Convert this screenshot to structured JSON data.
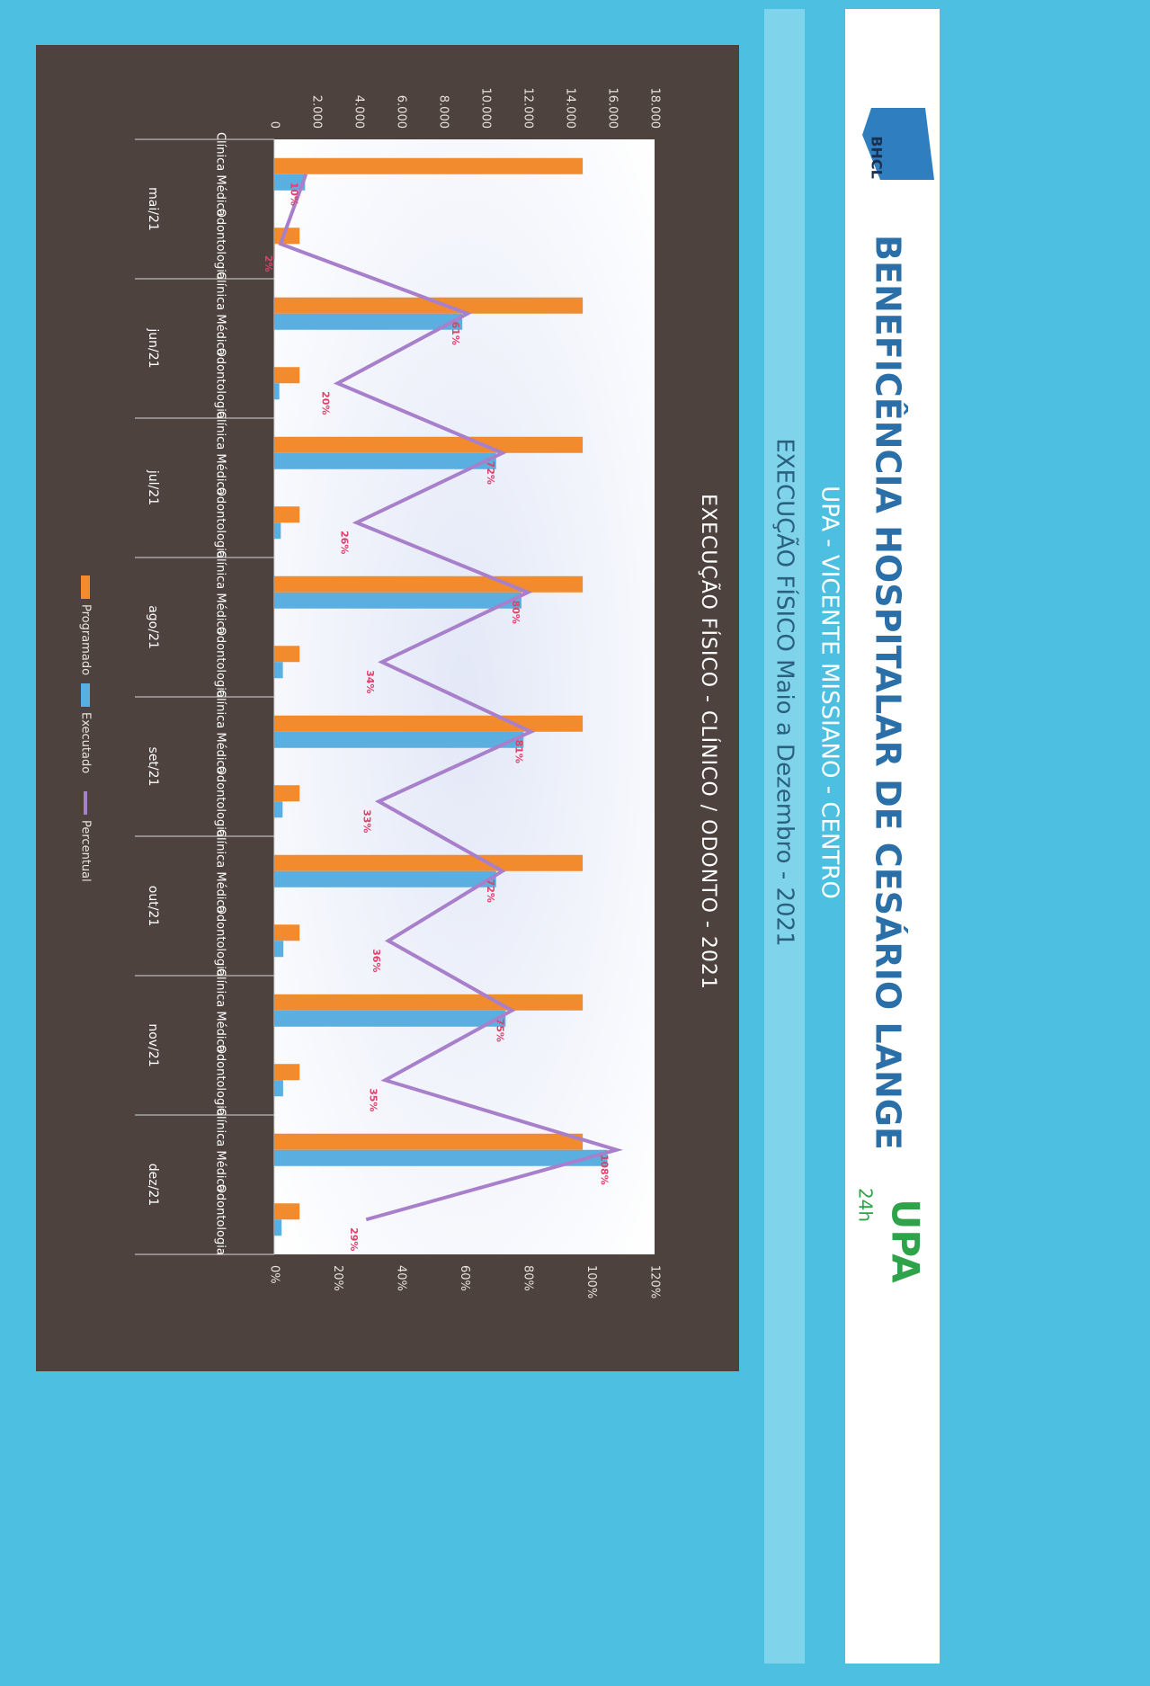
{
  "header": {
    "title": "BENEFICÊNCIA HOSPITALAR DE CESÁRIO LANGE",
    "subtitle": "UPA - VICENTE MISSIANO - CENTRO",
    "period": "EXECUÇÃO FÍSICO  Maio a Dezembro - 2021",
    "logo_left": "BHCL",
    "logo_right": "UPA",
    "logo_right_sub": "24h"
  },
  "chart_data": {
    "type": "bar",
    "title": "EXECUÇÃO FÍSICO - CLÍNICO / ODONTO - 2021",
    "category_groups": [
      "mai/21",
      "jun/21",
      "jul/21",
      "ago/21",
      "set/21",
      "out/21",
      "nov/21",
      "dez/21"
    ],
    "categories": [
      "Clínica Médica",
      "Odontologia",
      "Clínica Médica",
      "Odontologia",
      "Clínica Médica",
      "Odontologia",
      "Clínica Médica",
      "Odontologia",
      "Clínica Médica",
      "Odontologia",
      "Clínica Médica",
      "Odontologia",
      "Clínica Médica",
      "Odontologia",
      "Clínica Médica",
      "Odontologia"
    ],
    "series": [
      {
        "name": "Programado",
        "color": "#f28a2e",
        "values": [
          14600,
          1200,
          14600,
          1200,
          14600,
          1200,
          14600,
          1200,
          14600,
          1200,
          14600,
          1200,
          14600,
          1200,
          14600,
          1200
        ]
      },
      {
        "name": "Executado",
        "color": "#5aaee0",
        "values": [
          1460,
          24,
          8900,
          240,
          10500,
          312,
          11700,
          408,
          11800,
          396,
          10500,
          432,
          10950,
          420,
          15770,
          348
        ]
      },
      {
        "name": "Percentual",
        "color": "#a87fca",
        "axis": "y2",
        "values": [
          10,
          2,
          61,
          20,
          72,
          26,
          80,
          34,
          81,
          33,
          72,
          36,
          75,
          35,
          108,
          29
        ],
        "value_labels": [
          "10%",
          "2%",
          "61%",
          "20%",
          "72%",
          "26%",
          "80%",
          "34%",
          "81%",
          "33%",
          "72%",
          "36%",
          "75%",
          "35%",
          "108%",
          "29%"
        ]
      }
    ],
    "ylim": [
      0,
      18000
    ],
    "yticks": [
      0,
      {
        "value": 2000,
        "label": "2.000"
      },
      {
        "value": 4000,
        "label": "4.000"
      },
      {
        "value": 6000,
        "label": "6.000"
      },
      {
        "value": 8000,
        "label": "8.000"
      },
      {
        "value": 10000,
        "label": "10.000"
      },
      {
        "value": 12000,
        "label": "12.000"
      },
      {
        "value": 14000,
        "label": "14.000"
      },
      {
        "value": 16000,
        "label": "16.000"
      },
      {
        "value": 18000,
        "label": "18.000"
      }
    ],
    "y2lim": [
      0,
      120
    ],
    "y2ticks": [
      {
        "value": 0,
        "label": "0%"
      },
      {
        "value": 20,
        "label": "20%"
      },
      {
        "value": 40,
        "label": "40%"
      },
      {
        "value": 60,
        "label": "60%"
      },
      {
        "value": 80,
        "label": "80%"
      },
      {
        "value": 100,
        "label": "100%"
      },
      {
        "value": 120,
        "label": "120%"
      }
    ],
    "legend": "bottom"
  }
}
